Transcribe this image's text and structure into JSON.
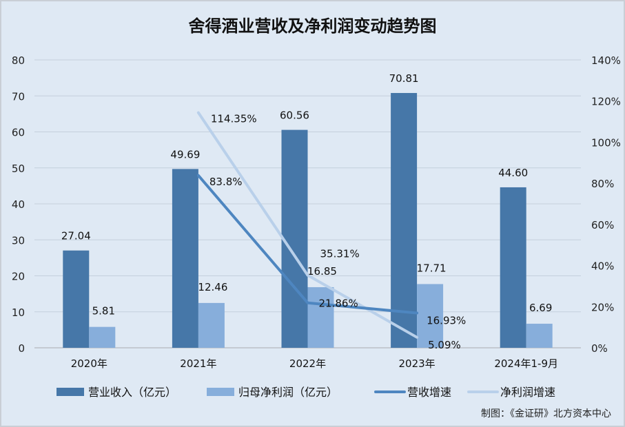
{
  "chart_data": {
    "type": "bar",
    "title": "舍得酒业营收及净利润变动趋势图",
    "categories": [
      "2020年",
      "2021年",
      "2022年",
      "2023年",
      "2024年1-9月"
    ],
    "ylim": [
      0,
      80
    ],
    "y_ticks": [
      "0",
      "10",
      "20",
      "30",
      "40",
      "50",
      "60",
      "70",
      "80"
    ],
    "y2lim": [
      0,
      140
    ],
    "y2_ticks": [
      "0%",
      "20%",
      "40%",
      "60%",
      "80%",
      "100%",
      "120%",
      "140%"
    ],
    "grid": true,
    "legend_position": "bottom",
    "series": [
      {
        "name": "营业收入（亿元）",
        "kind": "bar",
        "axis": "left",
        "color": "#4677a8",
        "values": [
          27.04,
          49.69,
          60.56,
          70.81,
          44.6
        ],
        "labels": [
          "27.04",
          "49.69",
          "60.56",
          "70.81",
          "44.60"
        ]
      },
      {
        "name": "归母净利润（亿元）",
        "kind": "bar",
        "axis": "left",
        "color": "#87aedb",
        "values": [
          5.81,
          12.46,
          16.85,
          17.71,
          6.69
        ],
        "labels": [
          "5.81",
          "12.46",
          "16.85",
          "17.71",
          "6.69"
        ]
      },
      {
        "name": "营收增速",
        "kind": "line",
        "axis": "right",
        "color": "#4e86c0",
        "values": [
          null,
          83.8,
          21.86,
          16.93,
          null
        ],
        "labels": [
          null,
          "83.8%",
          "21.86%",
          "16.93%",
          null
        ]
      },
      {
        "name": "净利润增速",
        "kind": "line",
        "axis": "right",
        "color": "#b9d0ea",
        "values": [
          null,
          114.35,
          35.31,
          5.09,
          null
        ],
        "labels": [
          null,
          "114.35%",
          "35.31%",
          "5.09%",
          null
        ]
      }
    ]
  },
  "source": "制图：《金证研》北方资本中心"
}
